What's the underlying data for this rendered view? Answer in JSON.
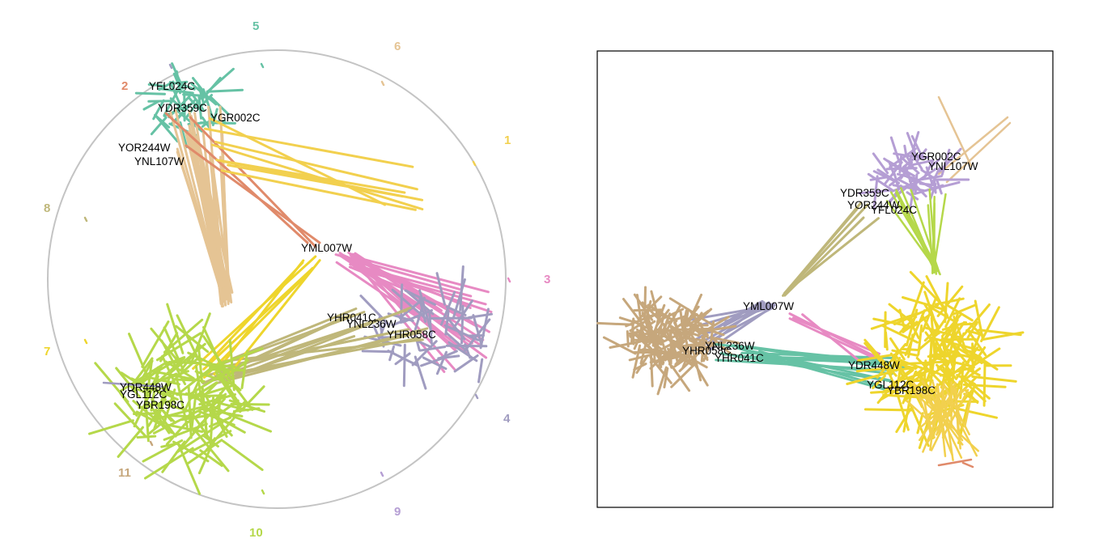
{
  "palette": {
    "teal": "#66c2a5",
    "salmon": "#e08a6a",
    "tan": "#e5c494",
    "yellow_gold": "#f2d04e",
    "pink": "#e78ac3",
    "lavender": "#a09cc0",
    "olive": "#bfb77a",
    "lime": "#b5d84a",
    "bright_yellow": "#eed52c",
    "brown": "#c6a77c",
    "violet": "#b59ed4",
    "ring": "#c4c4c4",
    "frame": "#000000"
  },
  "left_panel": {
    "sector_labels": [
      {
        "text": "1",
        "color": "#f2d04e"
      },
      {
        "text": "2",
        "color": "#e08a6a"
      },
      {
        "text": "3",
        "color": "#e78ac3"
      },
      {
        "text": "4",
        "color": "#a09cc0"
      },
      {
        "text": "5",
        "color": "#66c2a5"
      },
      {
        "text": "6",
        "color": "#e5c494"
      },
      {
        "text": "7",
        "color": "#eed52c"
      },
      {
        "text": "8",
        "color": "#bfb77a"
      },
      {
        "text": "9",
        "color": "#b59ed4"
      },
      {
        "text": "10",
        "color": "#b5d84a"
      },
      {
        "text": "11",
        "color": "#c6a77c"
      }
    ],
    "node_labels": [
      {
        "text": "YFL024C"
      },
      {
        "text": "YDR359C"
      },
      {
        "text": "YGR002C"
      },
      {
        "text": "YOR244W"
      },
      {
        "text": "YNL107W"
      },
      {
        "text": "YML007W"
      },
      {
        "text": "YHR041C"
      },
      {
        "text": "YNL236W"
      },
      {
        "text": "YHR058C"
      },
      {
        "text": "YDR448W"
      },
      {
        "text": "YGL112C"
      },
      {
        "text": "YBR198C"
      }
    ]
  },
  "right_panel": {
    "node_labels": [
      {
        "text": "YGR002C"
      },
      {
        "text": "YNL107W"
      },
      {
        "text": "YDR359C"
      },
      {
        "text": "YOR244W"
      },
      {
        "text": "YFL024C"
      },
      {
        "text": "YML007W"
      },
      {
        "text": "YNL236W"
      },
      {
        "text": "YHR058C"
      },
      {
        "text": "YHR041C"
      },
      {
        "text": "YDR448W"
      },
      {
        "text": "YGL112C"
      },
      {
        "text": "YBR198C"
      }
    ]
  }
}
